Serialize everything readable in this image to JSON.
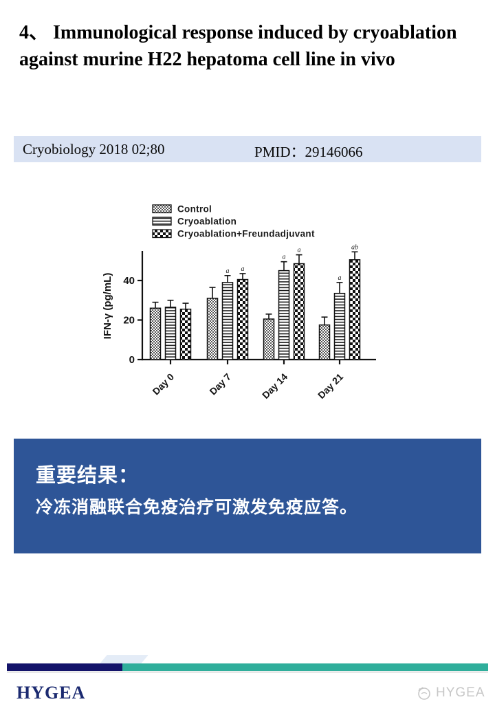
{
  "slide": {
    "title": "4、 Immunological response induced by cryoablation against murine H22 hepatoma cell line in vivo",
    "citation": {
      "journal": "Cryobiology 2018 02;80",
      "pmid": "PMID：29146066"
    },
    "result_box": {
      "heading": "重要结果：",
      "body": "冷冻消融联合免疫治疗可激发免疫应答。"
    },
    "footer": {
      "brand": "HYGEA",
      "watermark_text": "HYGEA"
    },
    "colors": {
      "result_box_bg": "#2e5597",
      "citation_bg": "#d9e2f3",
      "footer_navy": "#14146a",
      "footer_teal": "#2fae9b",
      "brand_navy": "#1b2a70",
      "watermark_gray": "#c7c7c7",
      "chart_ink": "#111111"
    }
  },
  "chart_data": {
    "type": "bar",
    "title": "",
    "xlabel": "",
    "ylabel": "IFN-γ (pg/mL)",
    "ylim": [
      0,
      55
    ],
    "yticks": [
      0,
      20,
      40
    ],
    "grid": false,
    "legend_position": "top-left",
    "categories": [
      "Day 0",
      "Day 7",
      "Day 14",
      "Day 21"
    ],
    "series": [
      {
        "name": "Control",
        "pattern": "dots",
        "values": [
          26,
          31,
          20.5,
          17.5
        ],
        "errors": [
          3,
          5.5,
          2.5,
          4
        ],
        "annotations": [
          "",
          "",
          "",
          ""
        ]
      },
      {
        "name": "Cryoablation",
        "pattern": "hlines",
        "values": [
          26.5,
          39,
          45,
          33.5
        ],
        "errors": [
          3.5,
          3.5,
          4.5,
          5.5
        ],
        "annotations": [
          "",
          "a",
          "a",
          "a"
        ]
      },
      {
        "name": "Cryoablation+Freundadjuvant",
        "pattern": "checker",
        "values": [
          25.5,
          40.5,
          48.5,
          50.5
        ],
        "errors": [
          3,
          3,
          4.5,
          4
        ],
        "annotations": [
          "",
          "a",
          "a",
          "ab"
        ]
      }
    ]
  }
}
